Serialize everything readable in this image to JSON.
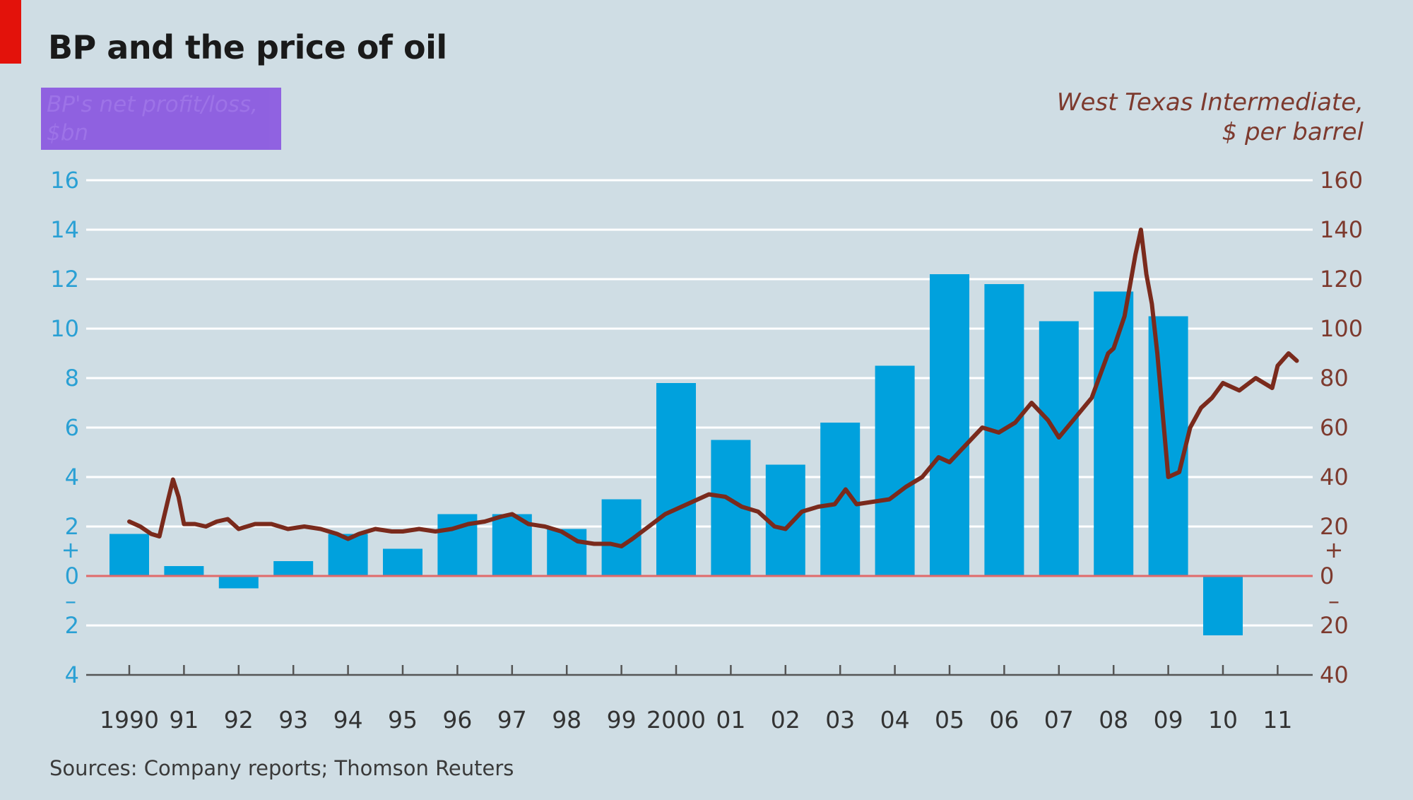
{
  "title": "BP and the price of oil",
  "left_label": [
    "BP's net profit/loss,",
    "$bn"
  ],
  "right_label": [
    "West Texas Intermediate,",
    "$ per barrel"
  ],
  "source": "Sources: Company reports; Thomson Reuters",
  "colors": {
    "bars": "#00a1dd",
    "line": "#7a2a1c",
    "grid": "#ffffff",
    "zero_line": "#e06a6a",
    "left_axis": "#2aa0d4",
    "right_axis": "#7d3a2e"
  },
  "chart_data": {
    "type": "bar+line",
    "x_ticks": [
      "1990",
      "91",
      "92",
      "93",
      "94",
      "95",
      "96",
      "97",
      "98",
      "99",
      "2000",
      "01",
      "02",
      "03",
      "04",
      "05",
      "06",
      "07",
      "08",
      "09",
      "10",
      "11"
    ],
    "left_axis": {
      "ylim": [
        -4,
        16
      ],
      "ticks": [
        16,
        14,
        12,
        10,
        8,
        6,
        4,
        2,
        0,
        -2,
        -4
      ],
      "tick_labels": [
        "16",
        "14",
        "12",
        "10",
        "8",
        "6",
        "4",
        "2",
        "0",
        "2",
        "4"
      ],
      "plus_sign": "+",
      "minus_sign": "–"
    },
    "right_axis": {
      "ylim": [
        -40,
        160
      ],
      "ticks": [
        160,
        140,
        120,
        100,
        80,
        60,
        40,
        20,
        0,
        -20,
        -40
      ],
      "tick_labels": [
        "160",
        "140",
        "120",
        "100",
        "80",
        "60",
        "40",
        "20",
        "0",
        "20",
        "40"
      ],
      "plus_sign": "+",
      "minus_sign": "–"
    },
    "series": [
      {
        "name": "BP's net profit/loss, $bn",
        "type": "bar",
        "axis": "left",
        "categories": [
          "1990",
          "1991",
          "1992",
          "1993",
          "1994",
          "1995",
          "1996",
          "1997",
          "1998",
          "1999",
          "2000",
          "2001",
          "2002",
          "2003",
          "2004",
          "2005",
          "2006",
          "2007",
          "2008",
          "2009",
          "2010"
        ],
        "values": [
          1.7,
          0.4,
          -0.5,
          0.6,
          1.7,
          1.1,
          2.5,
          2.5,
          1.9,
          3.1,
          7.8,
          5.5,
          4.5,
          6.2,
          8.5,
          12.2,
          11.8,
          10.3,
          11.5,
          10.5,
          -2.4
        ]
      },
      {
        "name": "West Texas Intermediate, $ per barrel",
        "type": "line",
        "axis": "right",
        "x": [
          1990.0,
          1990.2,
          1990.4,
          1990.55,
          1990.7,
          1990.8,
          1990.9,
          1991.0,
          1991.2,
          1991.4,
          1991.6,
          1991.8,
          1992.0,
          1992.3,
          1992.6,
          1992.9,
          1993.2,
          1993.5,
          1993.8,
          1994.0,
          1994.2,
          1994.5,
          1994.8,
          1995.0,
          1995.3,
          1995.6,
          1995.9,
          1996.2,
          1996.5,
          1996.8,
          1997.0,
          1997.3,
          1997.6,
          1997.9,
          1998.2,
          1998.5,
          1998.8,
          1999.0,
          1999.2,
          1999.5,
          1999.8,
          2000.0,
          2000.3,
          2000.6,
          2000.9,
          2001.2,
          2001.5,
          2001.8,
          2002.0,
          2002.3,
          2002.6,
          2002.9,
          2003.1,
          2003.3,
          2003.6,
          2003.9,
          2004.2,
          2004.5,
          2004.8,
          2005.0,
          2005.3,
          2005.6,
          2005.9,
          2006.2,
          2006.5,
          2006.8,
          2007.0,
          2007.3,
          2007.6,
          2007.9,
          2008.0,
          2008.2,
          2008.4,
          2008.5,
          2008.6,
          2008.7,
          2008.8,
          2008.9,
          2009.0,
          2009.2,
          2009.4,
          2009.6,
          2009.8,
          2010.0,
          2010.3,
          2010.6,
          2010.9,
          2011.0,
          2011.2,
          2011.35
        ],
        "values": [
          22,
          20,
          17,
          16,
          30,
          39,
          32,
          21,
          21,
          20,
          22,
          23,
          19,
          21,
          21,
          19,
          20,
          19,
          17,
          15,
          17,
          19,
          18,
          18,
          19,
          18,
          19,
          21,
          22,
          24,
          25,
          21,
          20,
          18,
          14,
          13,
          13,
          12,
          15,
          20,
          25,
          27,
          30,
          33,
          32,
          28,
          26,
          20,
          19,
          26,
          28,
          29,
          35,
          29,
          30,
          31,
          36,
          40,
          48,
          46,
          53,
          60,
          58,
          62,
          70,
          63,
          56,
          64,
          72,
          90,
          92,
          105,
          130,
          140,
          122,
          110,
          90,
          65,
          40,
          42,
          60,
          68,
          72,
          78,
          75,
          80,
          76,
          85,
          90,
          87
        ]
      }
    ],
    "grid": true
  }
}
